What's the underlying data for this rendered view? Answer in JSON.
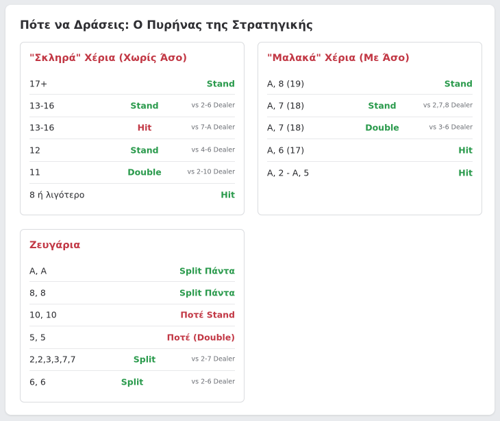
{
  "title": "Πότε να Δράσεις: Ο Πυρήνας της Στρατηγικής",
  "colors": {
    "stand_green": "#2a9a4c",
    "hit_red": "#c23845",
    "title_dark": "#2f2f33"
  },
  "hard": {
    "title": "\"Σκληρά\" Χέρια (Χωρίς Άσο)",
    "rows": [
      {
        "hand": "17+",
        "action": "Stand",
        "note": ""
      },
      {
        "hand": "13-16",
        "action": "Stand",
        "note": "vs 2-6 Dealer"
      },
      {
        "hand": "13-16",
        "action": "Hit",
        "note": "vs 7-A Dealer"
      },
      {
        "hand": "12",
        "action": "Stand",
        "note": "vs 4-6 Dealer"
      },
      {
        "hand": "11",
        "action": "Double",
        "note": "vs 2-10 Dealer"
      },
      {
        "hand": "8 ή λιγότερο",
        "action": "Hit",
        "note": ""
      }
    ]
  },
  "soft": {
    "title": "\"Μαλακά\" Χέρια (Με Άσο)",
    "rows": [
      {
        "hand": "A, 8 (19)",
        "action": "Stand",
        "note": ""
      },
      {
        "hand": "A, 7 (18)",
        "action": "Stand",
        "note": "vs 2,7,8 Dealer"
      },
      {
        "hand": "A, 7 (18)",
        "action": "Double",
        "note": "vs 3-6 Dealer"
      },
      {
        "hand": "A, 6 (17)",
        "action": "Hit",
        "note": ""
      },
      {
        "hand": "A, 2 - A, 5",
        "action": "Hit",
        "note": ""
      }
    ]
  },
  "pairs": {
    "title": "Ζευγάρια",
    "rows": [
      {
        "hand": "A, A",
        "action": "Split Πάντα",
        "note": ""
      },
      {
        "hand": "8, 8",
        "action": "Split Πάντα",
        "note": ""
      },
      {
        "hand": "10, 10",
        "action": "Ποτέ Stand",
        "note": ""
      },
      {
        "hand": "5, 5",
        "action": "Ποτέ (Double)",
        "note": ""
      },
      {
        "hand": "2,2,3,3,7,7",
        "action": "Split",
        "note": "vs 2-7 Dealer"
      },
      {
        "hand": "6, 6",
        "action": "Split",
        "note": "vs 2-6 Dealer"
      }
    ]
  }
}
